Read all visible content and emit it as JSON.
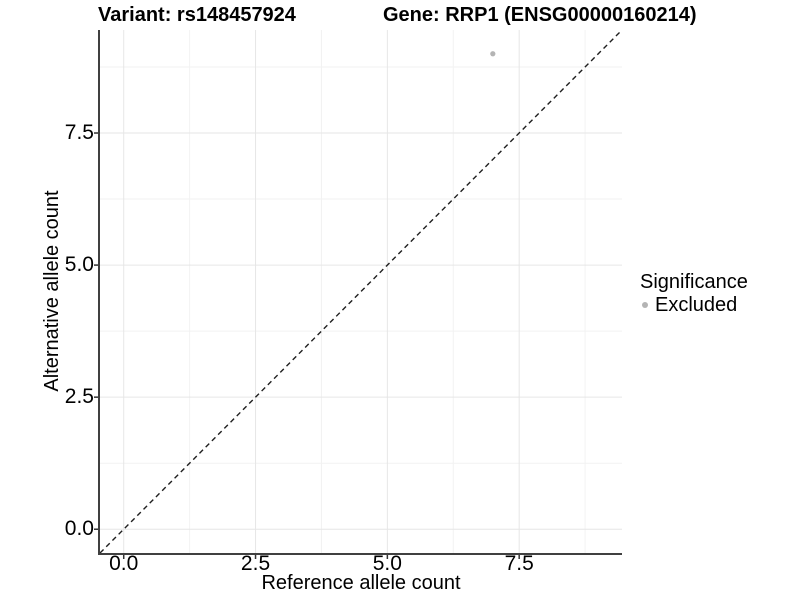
{
  "title": {
    "left": "Variant: rs148457924",
    "right": "Gene: RRP1 (ENSG00000160214)"
  },
  "chart_data": {
    "type": "scatter",
    "title": "Variant: rs148457924   Gene: RRP1 (ENSG00000160214)",
    "xlabel": "Reference allele count",
    "ylabel": "Alternative allele count",
    "xlim": [
      -0.45,
      9.45
    ],
    "ylim": [
      -0.45,
      9.45
    ],
    "x_ticks": {
      "values": [
        0,
        2.5,
        5.0,
        7.5
      ],
      "labels": [
        "0.0",
        "2.5",
        "5.0",
        "7.5"
      ]
    },
    "y_ticks": {
      "values": [
        0,
        2.5,
        5.0,
        7.5
      ],
      "labels": [
        "0.0",
        "2.5",
        "5.0",
        "7.5"
      ]
    },
    "x_minor_gridlines": [
      1.25,
      3.75,
      6.25,
      8.75
    ],
    "y_minor_gridlines": [
      1.25,
      3.75,
      6.25,
      8.75
    ],
    "grid": "major and minor, light grey on white background",
    "points": [
      {
        "x": 7,
        "y": 9,
        "series": "Excluded"
      }
    ],
    "reference_line": {
      "slope": 1,
      "intercept": 0,
      "style": "dashed",
      "color": "#1f1f1f"
    },
    "legend_position": "right"
  },
  "legend": {
    "title": "Significance",
    "entries": [
      {
        "label": "Excluded",
        "color": "#b4b4b4"
      }
    ]
  },
  "colors": {
    "background": "#ffffff",
    "grid_major": "#e6e6e6",
    "grid_minor": "#f2f2f2",
    "axis_line": "#404040",
    "tick_mark": "#333333",
    "point": "#b4b4b4",
    "dashed_line": "#1f1f1f",
    "text": "#000000"
  }
}
